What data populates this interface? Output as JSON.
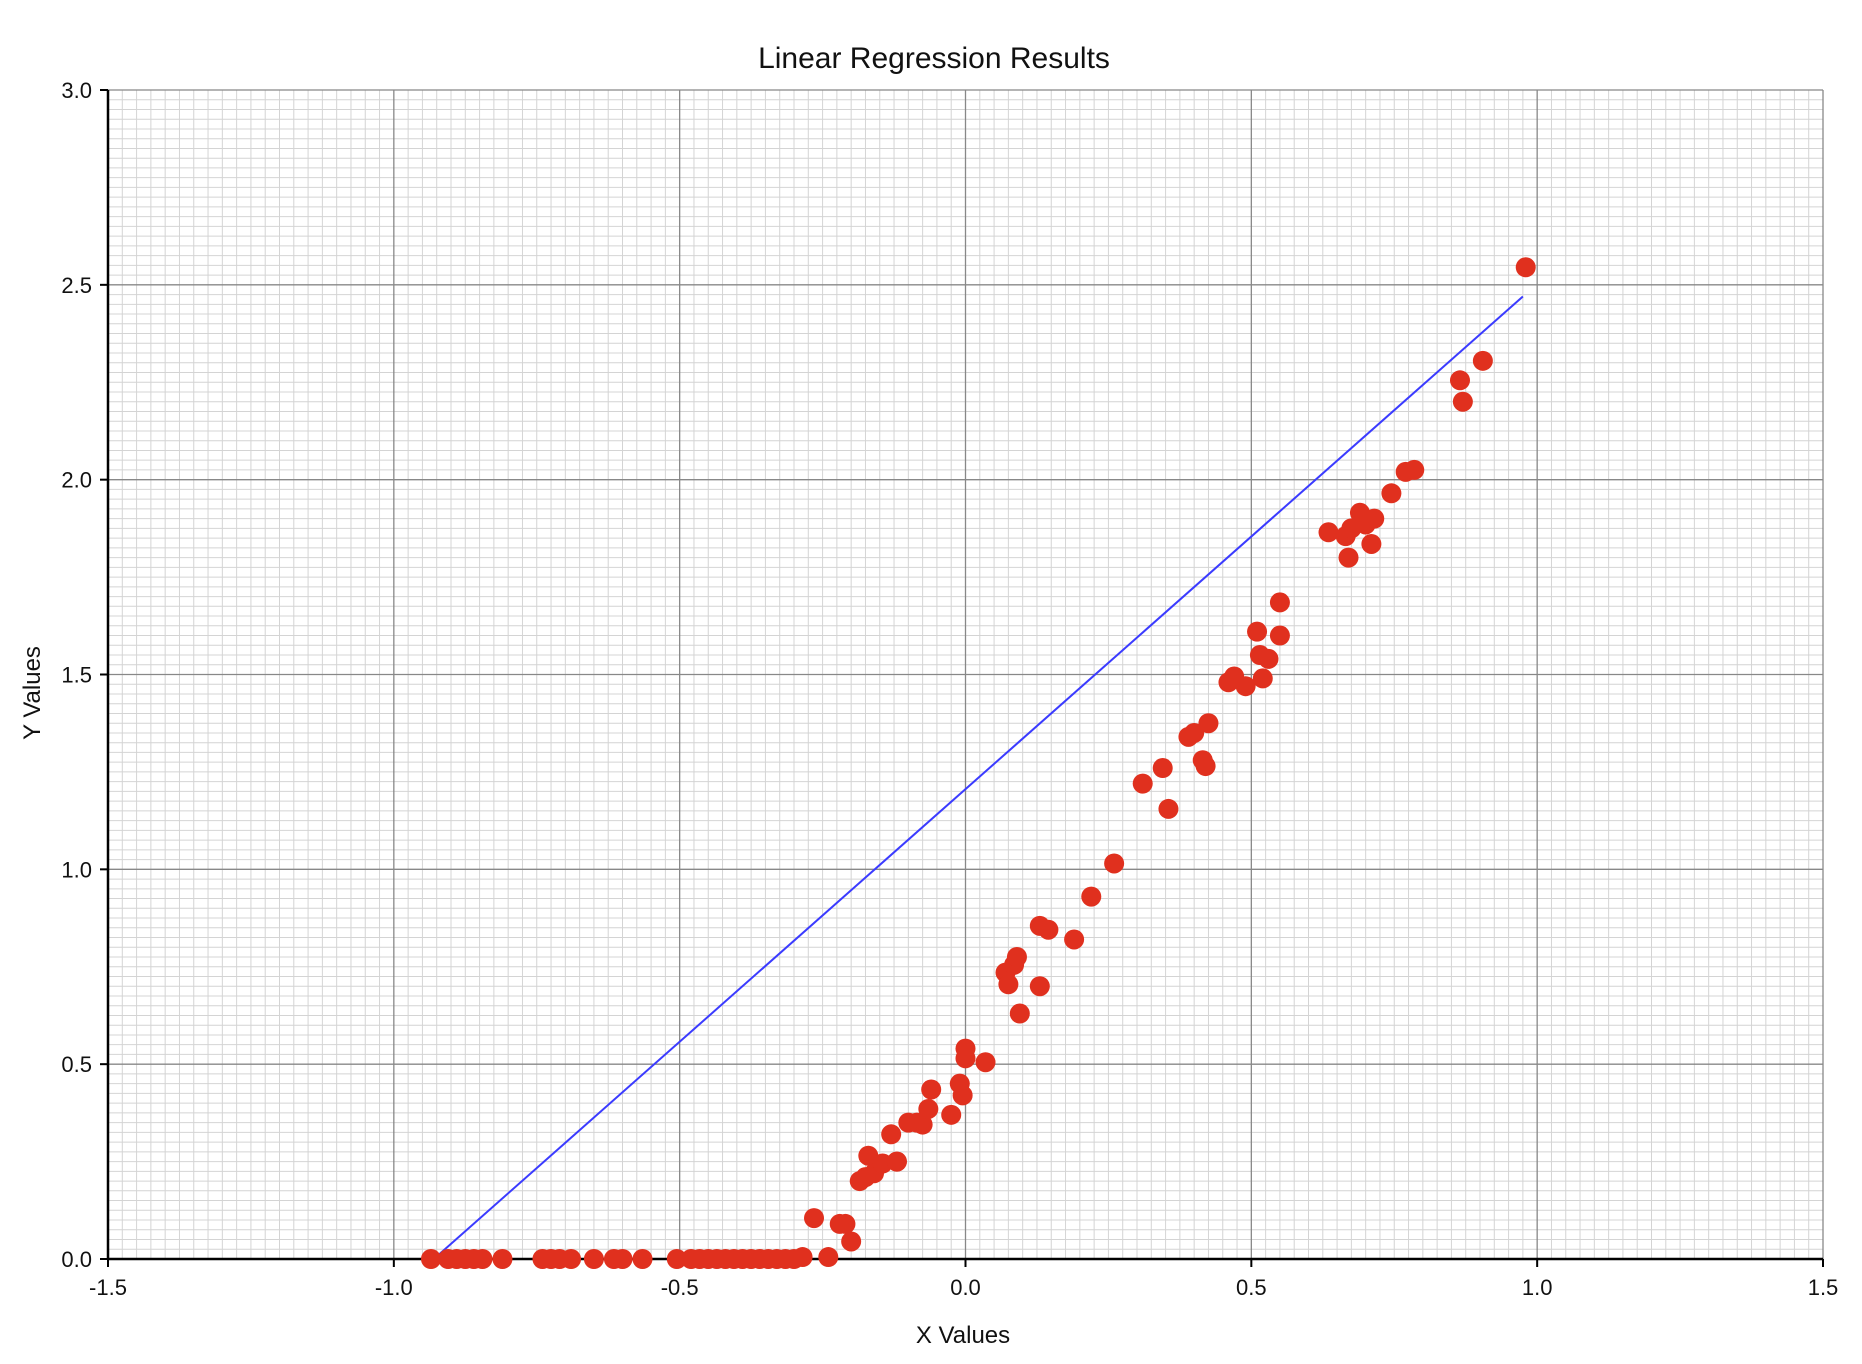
{
  "chart_data": {
    "type": "scatter",
    "title": "Linear Regression Results",
    "xlabel": "X Values",
    "ylabel": "Y Values",
    "xlim": [
      -1.5,
      1.5
    ],
    "ylim": [
      0.0,
      3.0
    ],
    "x_major_ticks": [
      "-1.5",
      "-1.0",
      "-0.5",
      "0.0",
      "0.5",
      "1.0",
      "1.5"
    ],
    "y_major_ticks": [
      "0.0",
      "0.5",
      "1.0",
      "1.5",
      "2.0",
      "2.5",
      "3.0"
    ],
    "grid": true,
    "legend": "none",
    "colors": {
      "points": "#e0301e",
      "line": "#3b3bff",
      "major_grid": "#888888",
      "minor_grid": "#d4d4d4",
      "axis": "#000000"
    },
    "regression_line": {
      "x": [
        -0.93,
        0.975
      ],
      "y": [
        0.0,
        2.47
      ]
    },
    "series": [
      {
        "kind": "scatter",
        "x": [
          -0.935,
          -0.905,
          -0.89,
          -0.875,
          -0.86,
          -0.845,
          -0.81,
          -0.74,
          -0.725,
          -0.71,
          -0.69,
          -0.65,
          -0.615,
          -0.6,
          -0.565,
          -0.505,
          -0.48,
          -0.465,
          -0.45,
          -0.435,
          -0.42,
          -0.405,
          -0.39,
          -0.375,
          -0.36,
          -0.345,
          -0.33,
          -0.315,
          -0.3,
          -0.285,
          -0.265,
          -0.24,
          -0.22,
          -0.21,
          -0.2,
          -0.185,
          -0.175,
          -0.17,
          -0.16,
          -0.145,
          -0.13,
          -0.12,
          -0.12,
          -0.1,
          -0.085,
          -0.075,
          -0.065,
          -0.06,
          -0.025,
          -0.01,
          -0.005,
          0.0,
          0.0,
          0.035,
          0.07,
          0.075,
          0.085,
          0.09,
          0.095,
          0.13,
          0.13,
          0.145,
          0.19,
          0.22,
          0.26,
          0.31,
          0.345,
          0.355,
          0.39,
          0.4,
          0.415,
          0.42,
          0.425,
          0.46,
          0.47,
          0.49,
          0.51,
          0.515,
          0.52,
          0.53,
          0.55,
          0.55,
          0.635,
          0.665,
          0.67,
          0.675,
          0.69,
          0.7,
          0.71,
          0.715,
          0.745,
          0.77,
          0.785,
          0.865,
          0.87,
          0.905,
          0.98
        ],
        "y": [
          0.0,
          0.0,
          0.0,
          0.0,
          0.0,
          0.0,
          0.0,
          0.0,
          0.0,
          0.0,
          0.0,
          0.0,
          0.0,
          0.0,
          0.0,
          0.0,
          0.0,
          0.0,
          0.0,
          0.0,
          0.0,
          0.0,
          0.0,
          0.0,
          0.0,
          0.0,
          0.0,
          0.0,
          0.0,
          0.005,
          0.105,
          0.005,
          0.09,
          0.09,
          0.045,
          0.2,
          0.21,
          0.265,
          0.22,
          0.245,
          0.32,
          0.25,
          0.25,
          0.35,
          0.35,
          0.345,
          0.385,
          0.435,
          0.37,
          0.45,
          0.42,
          0.54,
          0.515,
          0.505,
          0.735,
          0.705,
          0.755,
          0.775,
          0.63,
          0.7,
          0.855,
          0.845,
          0.82,
          0.93,
          1.015,
          1.22,
          1.26,
          1.155,
          1.34,
          1.35,
          1.28,
          1.265,
          1.375,
          1.48,
          1.495,
          1.47,
          1.61,
          1.55,
          1.49,
          1.54,
          1.685,
          1.6,
          1.865,
          1.855,
          1.8,
          1.875,
          1.915,
          1.885,
          1.835,
          1.9,
          1.965,
          2.02,
          2.025,
          2.255,
          2.2,
          2.305,
          2.545
        ]
      }
    ]
  }
}
